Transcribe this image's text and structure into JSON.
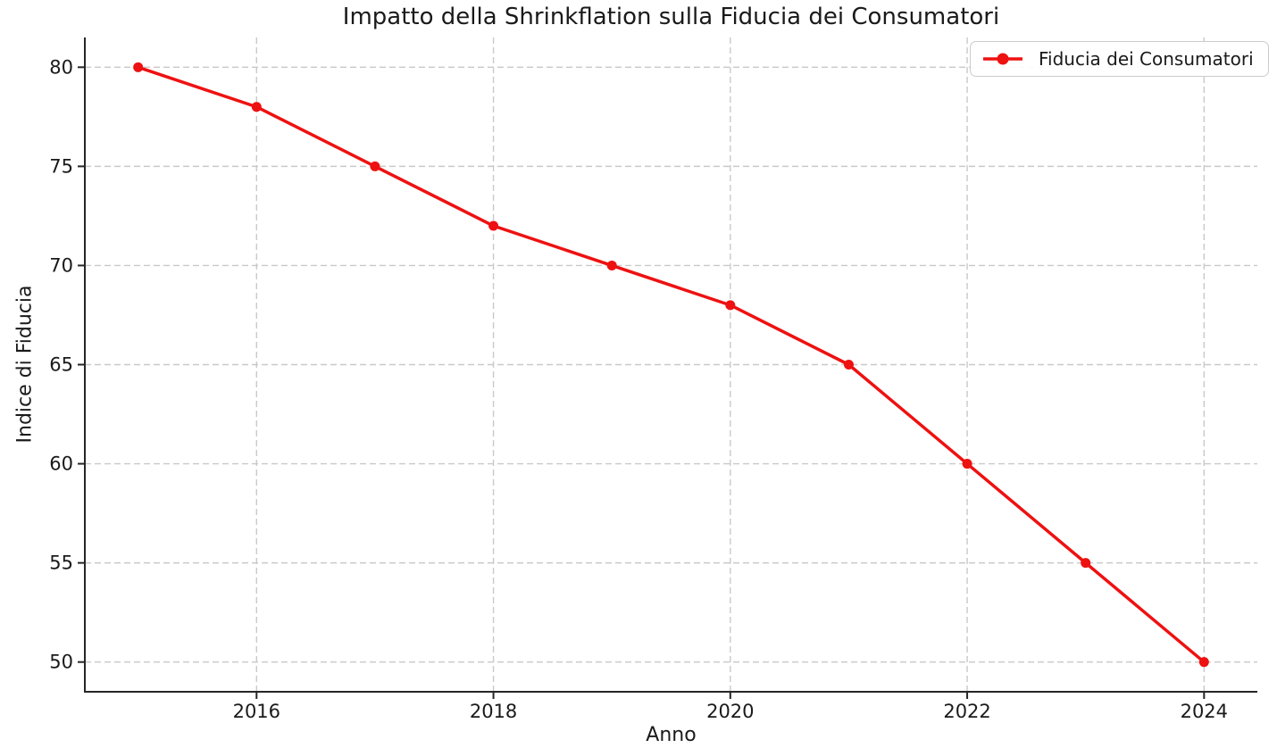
{
  "chart_data": {
    "type": "line",
    "title": "Impatto della Shrinkflation sulla Fiducia dei Consumatori",
    "xlabel": "Anno",
    "ylabel": "Indice di Fiducia",
    "x": [
      2015,
      2016,
      2017,
      2018,
      2019,
      2020,
      2021,
      2022,
      2023,
      2024
    ],
    "series": [
      {
        "name": "Fiducia dei Consumatori",
        "values": [
          80,
          78,
          75,
          72,
          70,
          68,
          65,
          60,
          55,
          50
        ],
        "color": "#ee1111",
        "marker": "circle",
        "line_width": 3.5,
        "marker_radius": 5.5
      }
    ],
    "xticks": [
      "2016",
      "2018",
      "2020",
      "2022",
      "2024"
    ],
    "xtick_values": [
      2016,
      2018,
      2020,
      2022,
      2024
    ],
    "yticks": [
      "50",
      "55",
      "60",
      "65",
      "70",
      "75",
      "80"
    ],
    "ytick_values": [
      50,
      55,
      60,
      65,
      70,
      75,
      80
    ],
    "xlim": [
      2014.55,
      2024.45
    ],
    "ylim": [
      48.5,
      81.5
    ],
    "grid": "dashed",
    "legend_position": "upper-right",
    "colors": {
      "background": "#ffffff",
      "grid": "#c9c9c9",
      "spine": "#262626",
      "text": "#1a1a1a",
      "legend_border": "#cccccc"
    }
  },
  "legend": {
    "label": "Fiducia dei Consumatori"
  }
}
